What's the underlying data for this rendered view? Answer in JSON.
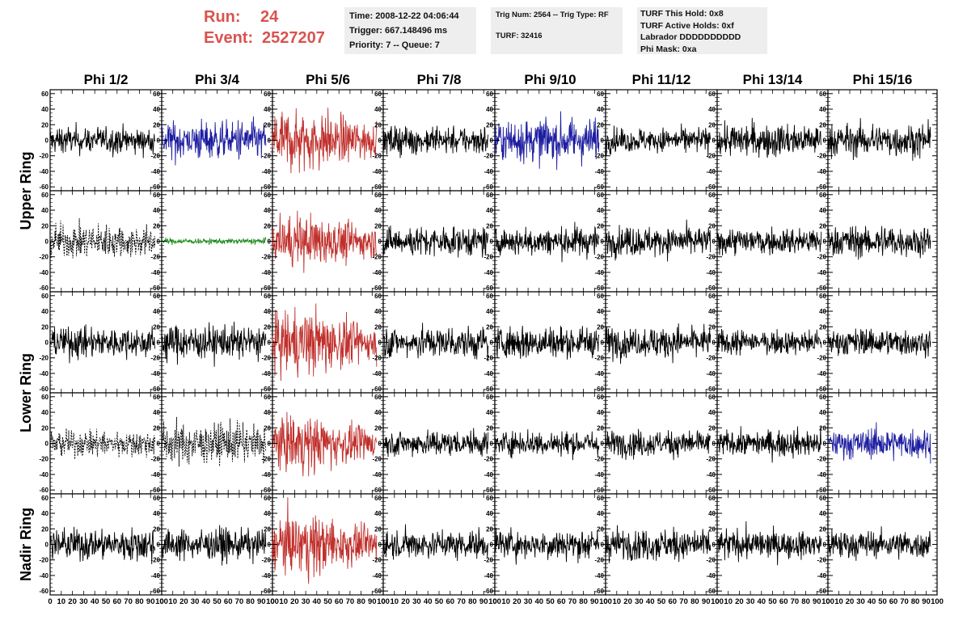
{
  "header": {
    "run_label": "Run:",
    "run_value": "24",
    "event_label": "Event:",
    "event_value": "2527207"
  },
  "info_boxes": {
    "time": "Time: 2008-12-22 04:06:44",
    "trigger": "Trigger: 667.148496 ms",
    "priority": "Priority: 7 -- Queue: 7",
    "trig_num": "Trig Num: 2564 -- Trig Type: RF",
    "turf": "TURF: 32416",
    "turf_hold": "TURF This Hold: 0x8",
    "turf_active": "TURF Active Holds: 0xf",
    "labrador": "Labrador DDDDDDDDDD",
    "phi_mask": "Phi Mask: 0xa"
  },
  "chart_data": {
    "type": "line",
    "columns": [
      "Phi 1/2",
      "Phi 3/4",
      "Phi 5/6",
      "Phi 7/8",
      "Phi 9/10",
      "Phi 11/12",
      "Phi 13/14",
      "Phi 15/16"
    ],
    "ring_labels": [
      "Upper Ring",
      "Lower Ring",
      "Nadir Ring"
    ],
    "rows_per_ring": [
      2,
      2,
      1
    ],
    "xlim": [
      0,
      100
    ],
    "ylim": [
      -65,
      65
    ],
    "x_ticks": [
      0,
      10,
      20,
      30,
      40,
      50,
      60,
      70,
      80,
      90,
      100
    ],
    "y_ticks": [
      -60,
      -40,
      -20,
      0,
      20,
      40,
      60
    ],
    "colors": {
      "black": "#000000",
      "red": "#c0302c",
      "blue": "#1c1ca0",
      "green": "#1a8a1a",
      "dashed": "#000000"
    },
    "cells": [
      [
        {
          "c": "black",
          "a": 14
        },
        {
          "c": "blue",
          "a": 20
        },
        {
          "c": "red",
          "a": 26
        },
        {
          "c": "black",
          "a": 15
        },
        {
          "c": "blue",
          "a": 22
        },
        {
          "c": "black",
          "a": 13
        },
        {
          "c": "black",
          "a": 17
        },
        {
          "c": "black",
          "a": 17
        }
      ],
      [
        {
          "c": "dashed",
          "a": 17
        },
        {
          "c": "green",
          "a": 3
        },
        {
          "c": "red",
          "a": 23
        },
        {
          "c": "black",
          "a": 15
        },
        {
          "c": "black",
          "a": 15
        },
        {
          "c": "black",
          "a": 15
        },
        {
          "c": "black",
          "a": 14
        },
        {
          "c": "black",
          "a": 16
        }
      ],
      [
        {
          "c": "black",
          "a": 16
        },
        {
          "c": "black",
          "a": 18
        },
        {
          "c": "red",
          "a": 27
        },
        {
          "c": "black",
          "a": 17
        },
        {
          "c": "black",
          "a": 17
        },
        {
          "c": "black",
          "a": 16
        },
        {
          "c": "black",
          "a": 13
        },
        {
          "c": "black",
          "a": 14
        }
      ],
      [
        {
          "c": "dashed",
          "a": 14
        },
        {
          "c": "dashed",
          "a": 21
        },
        {
          "c": "red",
          "a": 23
        },
        {
          "c": "black",
          "a": 13
        },
        {
          "c": "black",
          "a": 13
        },
        {
          "c": "black",
          "a": 14
        },
        {
          "c": "black",
          "a": 13
        },
        {
          "c": "blue",
          "a": 15
        }
      ],
      [
        {
          "c": "black",
          "a": 17
        },
        {
          "c": "black",
          "a": 16
        },
        {
          "c": "red",
          "a": 26
        },
        {
          "c": "black",
          "a": 15
        },
        {
          "c": "black",
          "a": 15
        },
        {
          "c": "black",
          "a": 16
        },
        {
          "c": "black",
          "a": 15
        },
        {
          "c": "black",
          "a": 15
        }
      ]
    ]
  }
}
